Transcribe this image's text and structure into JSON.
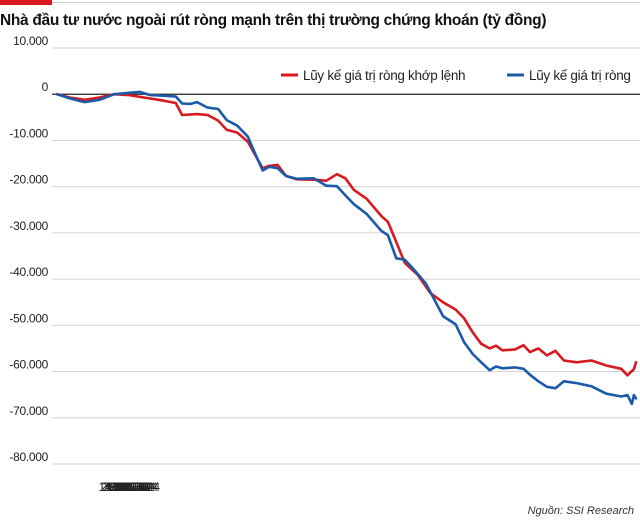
{
  "title": "Nhà đầu tư nước ngoài rút ròng mạnh trên thị trường chứng khoán (tỷ đồng)",
  "source": "Nguồn: SSI Research",
  "colors": {
    "accent": "#d71920",
    "series_red": "#d71920",
    "series_blue": "#1a5aa8"
  },
  "chart_data": {
    "type": "line",
    "title": "Nhà đầu tư nước ngoài rút ròng mạnh trên thị trường chứng khoán (tỷ đồng)",
    "xlabel": "",
    "ylabel": "",
    "x_ticks": [
      "1/2/2024",
      "2/2/2024",
      "3/2/2024",
      "4/2/2024",
      "5/2/2024",
      "6/2/2024",
      "7/2/2024",
      "8/2/2024",
      "9/2/2024"
    ],
    "y_ticks": [
      10000,
      0,
      -10000,
      -20000,
      -30000,
      -40000,
      -50000,
      -60000,
      -70000,
      -80000
    ],
    "y_tick_labels": [
      "10.000",
      "0",
      "-10.000",
      "-20.000",
      "-30.000",
      "-40.000",
      "-50.000",
      "-60.000",
      "-70.000",
      "-80.000"
    ],
    "ylim": [
      -80000,
      10000
    ],
    "xlim": [
      "2024-01-02",
      "2024-10-01"
    ],
    "grid": true,
    "legend_position": "top-right",
    "series": [
      {
        "name": "Lũy kế giá trị ròng khớp lệnh",
        "color": "#d71920",
        "points": [
          [
            "2024-01-02",
            0
          ],
          [
            "2024-01-08",
            -700
          ],
          [
            "2024-01-15",
            -1200
          ],
          [
            "2024-01-22",
            -700
          ],
          [
            "2024-01-29",
            0
          ],
          [
            "2024-02-05",
            -200
          ],
          [
            "2024-02-13",
            -800
          ],
          [
            "2024-02-20",
            -1300
          ],
          [
            "2024-02-27",
            -1900
          ],
          [
            "2024-03-01",
            -4500
          ],
          [
            "2024-03-08",
            -4300
          ],
          [
            "2024-03-13",
            -4500
          ],
          [
            "2024-03-18",
            -5700
          ],
          [
            "2024-03-22",
            -7700
          ],
          [
            "2024-03-27",
            -8300
          ],
          [
            "2024-04-01",
            -10300
          ],
          [
            "2024-04-05",
            -13600
          ],
          [
            "2024-04-08",
            -16000
          ],
          [
            "2024-04-11",
            -15500
          ],
          [
            "2024-04-15",
            -15300
          ],
          [
            "2024-04-19",
            -17700
          ],
          [
            "2024-04-24",
            -18400
          ],
          [
            "2024-05-02",
            -18500
          ],
          [
            "2024-05-08",
            -18700
          ],
          [
            "2024-05-13",
            -17300
          ],
          [
            "2024-05-17",
            -18200
          ],
          [
            "2024-05-21",
            -20700
          ],
          [
            "2024-05-27",
            -22600
          ],
          [
            "2024-06-03",
            -26400
          ],
          [
            "2024-06-06",
            -27600
          ],
          [
            "2024-06-10",
            -32000
          ],
          [
            "2024-06-14",
            -36500
          ],
          [
            "2024-06-20",
            -39000
          ],
          [
            "2024-06-26",
            -43000
          ],
          [
            "2024-07-02",
            -45000
          ],
          [
            "2024-07-08",
            -46600
          ],
          [
            "2024-07-12",
            -48500
          ],
          [
            "2024-07-16",
            -51500
          ],
          [
            "2024-07-20",
            -54000
          ],
          [
            "2024-07-24",
            -55000
          ],
          [
            "2024-07-27",
            -54400
          ],
          [
            "2024-07-30",
            -55400
          ],
          [
            "2024-08-05",
            -55200
          ],
          [
            "2024-08-09",
            -54300
          ],
          [
            "2024-08-12",
            -55800
          ],
          [
            "2024-08-16",
            -55000
          ],
          [
            "2024-08-20",
            -56500
          ],
          [
            "2024-08-24",
            -55500
          ],
          [
            "2024-08-28",
            -57600
          ],
          [
            "2024-09-03",
            -58000
          ],
          [
            "2024-09-10",
            -57600
          ],
          [
            "2024-09-17",
            -58700
          ],
          [
            "2024-09-24",
            -59400
          ],
          [
            "2024-09-27",
            -60800
          ],
          [
            "2024-09-30",
            -59500
          ],
          [
            "2024-10-01",
            -58000
          ]
        ]
      },
      {
        "name": "Lũy kế giá trị ròng",
        "color": "#1a5aa8",
        "points": [
          [
            "2024-01-02",
            0
          ],
          [
            "2024-01-08",
            -900
          ],
          [
            "2024-01-15",
            -1700
          ],
          [
            "2024-01-22",
            -1200
          ],
          [
            "2024-01-29",
            0
          ],
          [
            "2024-02-05",
            300
          ],
          [
            "2024-02-10",
            500
          ],
          [
            "2024-02-15",
            -200
          ],
          [
            "2024-02-20",
            -300
          ],
          [
            "2024-02-27",
            -500
          ],
          [
            "2024-03-01",
            -2000
          ],
          [
            "2024-03-05",
            -2100
          ],
          [
            "2024-03-08",
            -1700
          ],
          [
            "2024-03-13",
            -2900
          ],
          [
            "2024-03-18",
            -3200
          ],
          [
            "2024-03-22",
            -5600
          ],
          [
            "2024-03-27",
            -6800
          ],
          [
            "2024-04-01",
            -9200
          ],
          [
            "2024-04-05",
            -13500
          ],
          [
            "2024-04-08",
            -16500
          ],
          [
            "2024-04-11",
            -15700
          ],
          [
            "2024-04-15",
            -16000
          ],
          [
            "2024-04-19",
            -17700
          ],
          [
            "2024-04-24",
            -18300
          ],
          [
            "2024-05-02",
            -18200
          ],
          [
            "2024-05-08",
            -19800
          ],
          [
            "2024-05-13",
            -19900
          ],
          [
            "2024-05-17",
            -21900
          ],
          [
            "2024-05-21",
            -23800
          ],
          [
            "2024-05-27",
            -25900
          ],
          [
            "2024-06-03",
            -29600
          ],
          [
            "2024-06-06",
            -30500
          ],
          [
            "2024-06-10",
            -35500
          ],
          [
            "2024-06-14",
            -35800
          ],
          [
            "2024-06-18",
            -37800
          ],
          [
            "2024-06-24",
            -41000
          ],
          [
            "2024-07-02",
            -48000
          ],
          [
            "2024-07-08",
            -49800
          ],
          [
            "2024-07-12",
            -53700
          ],
          [
            "2024-07-16",
            -56200
          ],
          [
            "2024-07-20",
            -58000
          ],
          [
            "2024-07-24",
            -59700
          ],
          [
            "2024-07-27",
            -58900
          ],
          [
            "2024-07-30",
            -59300
          ],
          [
            "2024-08-05",
            -59100
          ],
          [
            "2024-08-09",
            -59400
          ],
          [
            "2024-08-12",
            -60700
          ],
          [
            "2024-08-16",
            -62100
          ],
          [
            "2024-08-20",
            -63300
          ],
          [
            "2024-08-24",
            -63600
          ],
          [
            "2024-08-28",
            -62100
          ],
          [
            "2024-09-03",
            -62500
          ],
          [
            "2024-09-10",
            -63200
          ],
          [
            "2024-09-17",
            -64800
          ],
          [
            "2024-09-24",
            -65400
          ],
          [
            "2024-09-27",
            -65100
          ],
          [
            "2024-09-29",
            -67000
          ],
          [
            "2024-09-30",
            -65100
          ],
          [
            "2024-10-01",
            -65800
          ]
        ]
      }
    ]
  }
}
